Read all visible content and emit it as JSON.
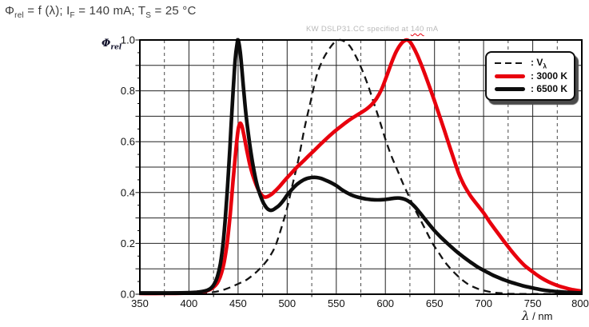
{
  "title": {
    "parts": [
      [
        "Φ",
        ""
      ],
      [
        "rel",
        "sub"
      ],
      [
        " = f (λ); I",
        ""
      ],
      [
        "F",
        "sub"
      ],
      [
        " = 140 mA; T",
        ""
      ],
      [
        "S",
        "sub"
      ],
      [
        " = 25 °C",
        ""
      ]
    ]
  },
  "watermark": {
    "prefix": "KW DSLP31.CC specified at ",
    "highlight": "140",
    "suffix": " mA",
    "text_color": "#b9b9b9",
    "underline_color": "#e8000d"
  },
  "axes": {
    "y_label_parts": [
      [
        "Φ",
        ""
      ],
      [
        "rel",
        "sub"
      ]
    ],
    "x_label_parts": [
      [
        "λ",
        "it"
      ],
      [
        " / nm",
        ""
      ]
    ]
  },
  "chart_data": {
    "type": "line",
    "x_range": [
      350,
      800
    ],
    "y_range": [
      0,
      1
    ],
    "x_major_step": 50,
    "x_minor_step": 25,
    "y_step": 0.1,
    "x_tick_labels": [
      "350",
      "400",
      "450",
      "500",
      "550",
      "600",
      "650",
      "700",
      "750",
      "800"
    ],
    "y_tick_labels": [
      "0.0",
      "0.2",
      "0.4",
      "0.6",
      "0.8",
      "1.0"
    ],
    "grid": {
      "on": true,
      "h_color": "#222222",
      "v_solid_color": "#222222",
      "v_dashed_color": "#4a4a4a",
      "border_color": "#000000"
    },
    "legend": {
      "position": "top-right",
      "entries": [
        {
          "label_parts": [
            [
              ": V",
              ""
            ],
            [
              "λ",
              "sub"
            ]
          ],
          "swatch": "dashed-black"
        },
        {
          "label_parts": [
            [
              ": 3000 K",
              ""
            ]
          ],
          "swatch": "solid-red"
        },
        {
          "label_parts": [
            [
              ": 6500 K",
              ""
            ]
          ],
          "swatch": "solid-black"
        }
      ]
    },
    "series": [
      {
        "id": "v-lambda",
        "name": "Vλ",
        "line": "dashed",
        "color": "#141414",
        "width": 2.3,
        "points": [
          [
            350,
            0.001
          ],
          [
            385,
            0.001
          ],
          [
            400,
            0.002
          ],
          [
            412,
            0.004
          ],
          [
            422,
            0.007
          ],
          [
            430,
            0.012
          ],
          [
            438,
            0.021
          ],
          [
            445,
            0.032
          ],
          [
            452,
            0.044
          ],
          [
            458,
            0.055
          ],
          [
            464,
            0.072
          ],
          [
            470,
            0.092
          ],
          [
            476,
            0.116
          ],
          [
            482,
            0.147
          ],
          [
            488,
            0.19
          ],
          [
            494,
            0.26
          ],
          [
            500,
            0.34
          ],
          [
            506,
            0.44
          ],
          [
            512,
            0.54
          ],
          [
            518,
            0.66
          ],
          [
            524,
            0.76
          ],
          [
            530,
            0.86
          ],
          [
            536,
            0.92
          ],
          [
            542,
            0.96
          ],
          [
            548,
            0.99
          ],
          [
            553,
            1.0
          ],
          [
            558,
            0.995
          ],
          [
            564,
            0.975
          ],
          [
            570,
            0.935
          ],
          [
            576,
            0.885
          ],
          [
            582,
            0.825
          ],
          [
            588,
            0.755
          ],
          [
            594,
            0.685
          ],
          [
            600,
            0.61
          ],
          [
            606,
            0.545
          ],
          [
            612,
            0.49
          ],
          [
            618,
            0.435
          ],
          [
            624,
            0.385
          ],
          [
            630,
            0.335
          ],
          [
            636,
            0.29
          ],
          [
            642,
            0.245
          ],
          [
            648,
            0.2
          ],
          [
            654,
            0.165
          ],
          [
            660,
            0.13
          ],
          [
            666,
            0.102
          ],
          [
            672,
            0.078
          ],
          [
            678,
            0.057
          ],
          [
            684,
            0.04
          ],
          [
            690,
            0.028
          ],
          [
            696,
            0.019
          ],
          [
            702,
            0.013
          ],
          [
            710,
            0.007
          ],
          [
            718,
            0.004
          ],
          [
            726,
            0.002
          ],
          [
            736,
            0.001
          ],
          [
            750,
            0.001
          ],
          [
            800,
            0.001
          ]
        ]
      },
      {
        "id": "3000k",
        "name": "3000 K",
        "line": "solid",
        "color": "#e8000d",
        "width": 4.6,
        "points": [
          [
            350,
            0.003
          ],
          [
            375,
            0.003
          ],
          [
            395,
            0.004
          ],
          [
            405,
            0.006
          ],
          [
            412,
            0.009
          ],
          [
            418,
            0.013
          ],
          [
            423,
            0.022
          ],
          [
            427,
            0.035
          ],
          [
            430,
            0.052
          ],
          [
            433,
            0.082
          ],
          [
            436,
            0.13
          ],
          [
            439,
            0.205
          ],
          [
            442,
            0.315
          ],
          [
            445,
            0.45
          ],
          [
            448,
            0.575
          ],
          [
            450,
            0.645
          ],
          [
            452,
            0.672
          ],
          [
            454,
            0.66
          ],
          [
            456,
            0.625
          ],
          [
            459,
            0.565
          ],
          [
            462,
            0.51
          ],
          [
            465,
            0.468
          ],
          [
            468,
            0.435
          ],
          [
            471,
            0.408
          ],
          [
            474,
            0.39
          ],
          [
            477,
            0.382
          ],
          [
            480,
            0.384
          ],
          [
            484,
            0.393
          ],
          [
            488,
            0.407
          ],
          [
            493,
            0.427
          ],
          [
            498,
            0.45
          ],
          [
            504,
            0.475
          ],
          [
            510,
            0.5
          ],
          [
            516,
            0.522
          ],
          [
            522,
            0.545
          ],
          [
            528,
            0.567
          ],
          [
            534,
            0.59
          ],
          [
            540,
            0.612
          ],
          [
            546,
            0.633
          ],
          [
            552,
            0.652
          ],
          [
            558,
            0.67
          ],
          [
            564,
            0.687
          ],
          [
            570,
            0.702
          ],
          [
            576,
            0.716
          ],
          [
            581,
            0.729
          ],
          [
            586,
            0.746
          ],
          [
            591,
            0.77
          ],
          [
            596,
            0.805
          ],
          [
            601,
            0.855
          ],
          [
            606,
            0.908
          ],
          [
            610,
            0.946
          ],
          [
            613,
            0.968
          ],
          [
            616,
            0.985
          ],
          [
            619,
            0.996
          ],
          [
            622,
            1.0
          ],
          [
            625,
            0.993
          ],
          [
            628,
            0.975
          ],
          [
            632,
            0.945
          ],
          [
            636,
            0.908
          ],
          [
            640,
            0.868
          ],
          [
            645,
            0.815
          ],
          [
            650,
            0.76
          ],
          [
            655,
            0.703
          ],
          [
            660,
            0.645
          ],
          [
            665,
            0.586
          ],
          [
            670,
            0.528
          ],
          [
            675,
            0.472
          ],
          [
            680,
            0.43
          ],
          [
            687,
            0.385
          ],
          [
            694,
            0.35
          ],
          [
            700,
            0.32
          ],
          [
            707,
            0.28
          ],
          [
            714,
            0.243
          ],
          [
            721,
            0.207
          ],
          [
            728,
            0.172
          ],
          [
            735,
            0.14
          ],
          [
            742,
            0.112
          ],
          [
            750,
            0.088
          ],
          [
            758,
            0.066
          ],
          [
            766,
            0.049
          ],
          [
            774,
            0.036
          ],
          [
            782,
            0.026
          ],
          [
            790,
            0.018
          ],
          [
            800,
            0.012
          ]
        ]
      },
      {
        "id": "6500k",
        "name": "6500 K",
        "line": "solid",
        "color": "#0d0d0d",
        "width": 4.6,
        "points": [
          [
            350,
            0.005
          ],
          [
            380,
            0.005
          ],
          [
            400,
            0.006
          ],
          [
            408,
            0.008
          ],
          [
            414,
            0.011
          ],
          [
            419,
            0.016
          ],
          [
            423,
            0.026
          ],
          [
            426,
            0.042
          ],
          [
            429,
            0.07
          ],
          [
            432,
            0.12
          ],
          [
            435,
            0.21
          ],
          [
            438,
            0.35
          ],
          [
            441,
            0.53
          ],
          [
            443,
            0.67
          ],
          [
            445,
            0.8
          ],
          [
            447,
            0.92
          ],
          [
            449,
            0.985
          ],
          [
            450,
            1.0
          ],
          [
            452,
            0.96
          ],
          [
            454,
            0.88
          ],
          [
            456,
            0.79
          ],
          [
            458,
            0.71
          ],
          [
            461,
            0.615
          ],
          [
            464,
            0.535
          ],
          [
            467,
            0.47
          ],
          [
            470,
            0.42
          ],
          [
            473,
            0.385
          ],
          [
            476,
            0.358
          ],
          [
            479,
            0.34
          ],
          [
            482,
            0.331
          ],
          [
            485,
            0.331
          ],
          [
            488,
            0.338
          ],
          [
            492,
            0.35
          ],
          [
            496,
            0.368
          ],
          [
            500,
            0.39
          ],
          [
            505,
            0.413
          ],
          [
            510,
            0.432
          ],
          [
            515,
            0.446
          ],
          [
            520,
            0.455
          ],
          [
            525,
            0.459
          ],
          [
            530,
            0.459
          ],
          [
            535,
            0.455
          ],
          [
            540,
            0.447
          ],
          [
            545,
            0.438
          ],
          [
            550,
            0.427
          ],
          [
            555,
            0.413
          ],
          [
            560,
            0.401
          ],
          [
            565,
            0.391
          ],
          [
            570,
            0.384
          ],
          [
            575,
            0.379
          ],
          [
            580,
            0.375
          ],
          [
            586,
            0.372
          ],
          [
            592,
            0.371
          ],
          [
            598,
            0.372
          ],
          [
            604,
            0.375
          ],
          [
            610,
            0.378
          ],
          [
            615,
            0.378
          ],
          [
            620,
            0.373
          ],
          [
            625,
            0.362
          ],
          [
            630,
            0.344
          ],
          [
            635,
            0.321
          ],
          [
            640,
            0.297
          ],
          [
            645,
            0.273
          ],
          [
            650,
            0.25
          ],
          [
            656,
            0.226
          ],
          [
            662,
            0.204
          ],
          [
            668,
            0.183
          ],
          [
            674,
            0.163
          ],
          [
            680,
            0.145
          ],
          [
            686,
            0.128
          ],
          [
            692,
            0.112
          ],
          [
            698,
            0.098
          ],
          [
            704,
            0.086
          ],
          [
            710,
            0.074
          ],
          [
            716,
            0.064
          ],
          [
            722,
            0.055
          ],
          [
            728,
            0.047
          ],
          [
            734,
            0.04
          ],
          [
            740,
            0.033
          ],
          [
            746,
            0.028
          ],
          [
            752,
            0.023
          ],
          [
            760,
            0.017
          ],
          [
            768,
            0.013
          ],
          [
            776,
            0.01
          ],
          [
            784,
            0.008
          ],
          [
            792,
            0.006
          ],
          [
            800,
            0.005
          ]
        ]
      }
    ]
  }
}
